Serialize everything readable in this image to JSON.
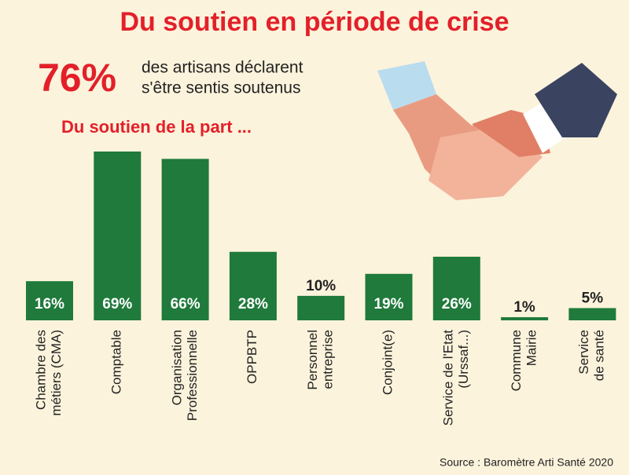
{
  "chart_data": {
    "type": "bar",
    "title": "Du soutien en période de crise",
    "headline_value": "76%",
    "headline_text": [
      "des artisans déclarent",
      "s'être sentis soutenus"
    ],
    "subtitle": "Du soutien de la part ...",
    "categories": [
      "Chambre des\nmétiers (CMA)",
      "Comptable",
      "Organisation\nProfessionnelle",
      "OPPBTP",
      "Personnel\nentreprise",
      "Conjoint(e)",
      "Service de l'Etat\n(Urssaf...)",
      "Commune\nMairie",
      "Service\nde santé"
    ],
    "values": [
      16,
      69,
      66,
      28,
      10,
      19,
      26,
      1,
      5
    ],
    "value_labels": [
      "16%",
      "69%",
      "66%",
      "28%",
      "10%",
      "19%",
      "26%",
      "1%",
      "5%"
    ],
    "color": "#1f7a3b",
    "ylim": [
      0,
      69
    ],
    "source": "Source : Baromètre Arti Santé 2020"
  }
}
